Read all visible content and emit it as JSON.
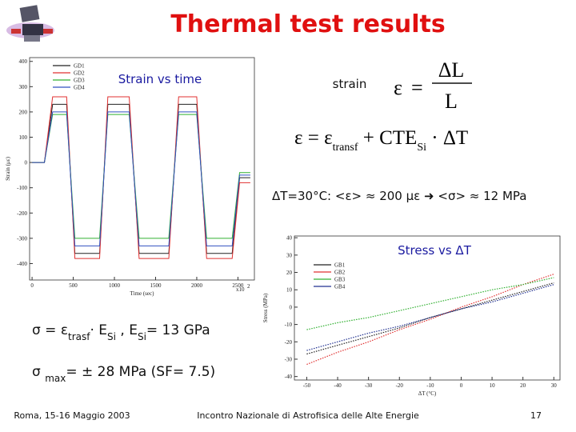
{
  "title": "Thermal test results",
  "strain_chart": {
    "type": "line",
    "title": "Strain vs time",
    "x_label": "Time (sec)",
    "y_label": "Strain (με)",
    "x_multiplier": "x10",
    "x_multiplier_exponent": "2",
    "x": [
      0,
      150,
      250,
      420,
      520,
      820,
      920,
      1180,
      1300,
      1660,
      1780,
      2000,
      2120,
      2430,
      2520,
      2650
    ],
    "series": [
      {
        "name": "GD1",
        "color": "#222222",
        "values": [
          0,
          0,
          230,
          230,
          -360,
          -360,
          230,
          230,
          -360,
          -360,
          230,
          230,
          -360,
          -360,
          -60,
          -60
        ]
      },
      {
        "name": "GD2",
        "color": "#e03030",
        "values": [
          0,
          0,
          260,
          260,
          -380,
          -380,
          260,
          260,
          -380,
          -380,
          260,
          260,
          -380,
          -380,
          -80,
          -80
        ]
      },
      {
        "name": "GD3",
        "color": "#30b030",
        "values": [
          0,
          0,
          190,
          190,
          -300,
          -300,
          190,
          190,
          -300,
          -300,
          190,
          190,
          -300,
          -300,
          -40,
          -40
        ]
      },
      {
        "name": "GD4",
        "color": "#3050c0",
        "values": [
          0,
          0,
          200,
          200,
          -330,
          -330,
          200,
          200,
          -330,
          -330,
          200,
          200,
          -330,
          -330,
          -50,
          -50
        ]
      }
    ],
    "xlim": [
      -30,
      2700
    ],
    "ylim": [
      -465,
      415
    ],
    "xticks": [
      0,
      500,
      1000,
      1500,
      2000,
      2500
    ],
    "yticks": [
      400,
      300,
      200,
      100,
      0,
      -100,
      -200,
      -300,
      -400
    ]
  },
  "stress_chart": {
    "type": "line",
    "title": "Stress vs ΔT",
    "x_label": "ΔT (°C)",
    "y_label": "Stress (MPa)",
    "x": [
      -50,
      -40,
      -30,
      -20,
      -10,
      0,
      10,
      20,
      30
    ],
    "series": [
      {
        "name": "GB1",
        "color": "#222222",
        "values": [
          -27,
          -22,
          -17,
          -12,
          -6,
          -1,
          4,
          9,
          14
        ]
      },
      {
        "name": "GB2",
        "color": "#e03030",
        "values": [
          -33,
          -26,
          -20,
          -13,
          -7,
          0,
          6,
          13,
          19
        ]
      },
      {
        "name": "GB3",
        "color": "#30b030",
        "values": [
          -13,
          -9,
          -6,
          -2,
          2,
          6,
          10,
          13,
          17
        ]
      },
      {
        "name": "GB4",
        "color": "#203090",
        "values": [
          -25,
          -20,
          -15,
          -11,
          -6,
          -1,
          3,
          8,
          13
        ]
      }
    ],
    "xlim": [
      -54,
      32
    ],
    "ylim": [
      -42,
      41
    ],
    "xticks": [
      -50,
      -40,
      -30,
      -20,
      -10,
      0,
      10,
      20,
      30
    ],
    "yticks": [
      40,
      30,
      20,
      10,
      0,
      -10,
      -20,
      -30,
      -40
    ]
  },
  "strain_label": "strain",
  "strain_definition": {
    "lhs": "ε",
    "equals": "=",
    "numerator": "ΔL",
    "denominator": "L"
  },
  "strain_model": [
    "ε = ε",
    "transf",
    " + CTE",
    "Si",
    " · ΔT"
  ],
  "delta_t_result": "ΔT=30°C: <ε> ≈ 200 με  ➜ <σ> ≈ 12 MPa",
  "stress_formula": [
    "σ = ε",
    "trasf",
    "· E",
    "Si",
    " , E",
    "Si",
    "= 13 GPa"
  ],
  "stress_max": [
    "σ ",
    "max",
    "= ± 28 MPa  (SF= 7.5)"
  ],
  "footer": {
    "left": "Roma, 15-16 Maggio 2003",
    "center": "Incontro Nazionale di Astrofisica delle Alte Energie",
    "page": "17"
  }
}
